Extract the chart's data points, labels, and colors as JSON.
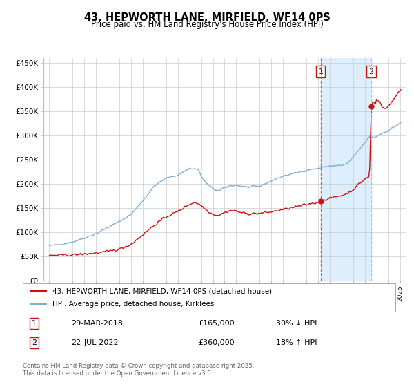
{
  "title": "43, HEPWORTH LANE, MIRFIELD, WF14 0PS",
  "subtitle": "Price paid vs. HM Land Registry's House Price Index (HPI)",
  "background_color": "#ffffff",
  "grid_color": "#cccccc",
  "ylabel_ticks": [
    "£0",
    "£50K",
    "£100K",
    "£150K",
    "£200K",
    "£250K",
    "£300K",
    "£350K",
    "£400K",
    "£450K"
  ],
  "ytick_values": [
    0,
    50000,
    100000,
    150000,
    200000,
    250000,
    300000,
    350000,
    400000,
    450000
  ],
  "xlim": [
    1994.5,
    2025.5
  ],
  "ylim": [
    0,
    460000
  ],
  "hpi_color": "#7bafd4",
  "price_color": "#cc1111",
  "vline1_color": "#dd4444",
  "vline2_color": "#aabbdd",
  "shade_color": "#ddeeff",
  "legend_label_price": "43, HEPWORTH LANE, MIRFIELD, WF14 0PS (detached house)",
  "legend_label_hpi": "HPI: Average price, detached house, Kirklees",
  "transaction1_date": "29-MAR-2018",
  "transaction1_price": "£165,000",
  "transaction1_hpi": "30% ↓ HPI",
  "transaction1_year": 2018.23,
  "transaction1_value": 165000,
  "transaction2_date": "22-JUL-2022",
  "transaction2_price": "£360,000",
  "transaction2_hpi": "18% ↑ HPI",
  "transaction2_year": 2022.55,
  "transaction2_value": 360000,
  "footer_text": "Contains HM Land Registry data © Crown copyright and database right 2025.\nThis data is licensed under the Open Government Licence v3.0."
}
